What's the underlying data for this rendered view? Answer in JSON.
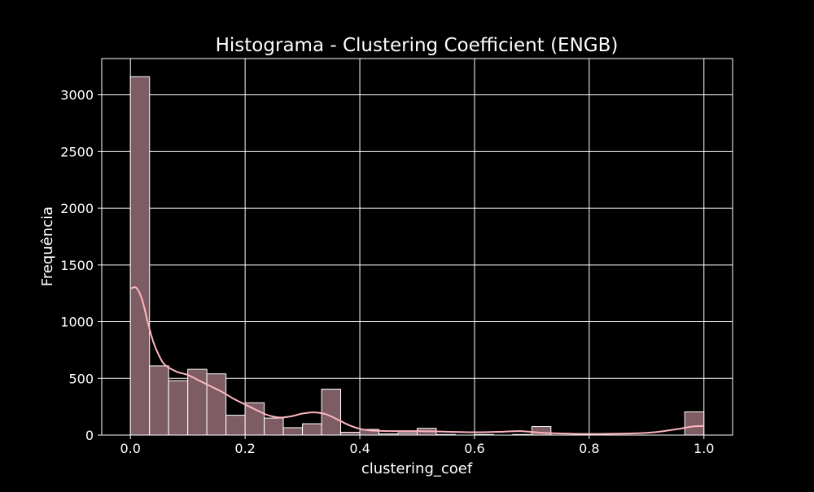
{
  "chart_data": {
    "type": "bar",
    "title": "Histograma - Clustering Coefficient (ENGB)",
    "xlabel": "clustering_coef",
    "ylabel": "Frequência",
    "xlim": [
      -0.05,
      1.05
    ],
    "ylim": [
      0,
      3320
    ],
    "xticks": [
      0.0,
      0.2,
      0.4,
      0.6,
      0.8,
      1.0
    ],
    "xtick_labels": [
      "0.0",
      "0.2",
      "0.4",
      "0.6",
      "0.8",
      "1.0"
    ],
    "yticks": [
      0,
      500,
      1000,
      1500,
      2000,
      2500,
      3000
    ],
    "ytick_labels": [
      "0",
      "500",
      "1000",
      "1500",
      "2000",
      "2500",
      "3000"
    ],
    "grid": true,
    "bins": 30,
    "bin_start": 0.0,
    "bin_width": 0.03333,
    "counts": [
      3160,
      610,
      480,
      580,
      540,
      175,
      285,
      150,
      65,
      100,
      405,
      25,
      50,
      10,
      20,
      60,
      5,
      0,
      5,
      0,
      5,
      75,
      0,
      0,
      0,
      0,
      0,
      0,
      0,
      205
    ],
    "kde": {
      "x": [
        0.0,
        0.01,
        0.02,
        0.03,
        0.04,
        0.05,
        0.06,
        0.08,
        0.1,
        0.12,
        0.14,
        0.16,
        0.18,
        0.2,
        0.22,
        0.24,
        0.26,
        0.28,
        0.3,
        0.32,
        0.34,
        0.36,
        0.38,
        0.4,
        0.42,
        0.45,
        0.5,
        0.55,
        0.6,
        0.65,
        0.68,
        0.72,
        0.8,
        0.9,
        0.95,
        0.98,
        1.0
      ],
      "y": [
        1290,
        1300,
        1200,
        1000,
        820,
        700,
        620,
        560,
        530,
        480,
        430,
        380,
        320,
        270,
        220,
        175,
        155,
        165,
        190,
        200,
        185,
        140,
        90,
        55,
        40,
        35,
        35,
        30,
        25,
        30,
        35,
        20,
        10,
        20,
        50,
        75,
        80
      ]
    },
    "colors": {
      "bar_fill": "#7d5d63",
      "bar_edge": "#ffffff",
      "kde_line": "#ffb6c1",
      "grid": "#ffffff",
      "background": "#000000"
    }
  }
}
